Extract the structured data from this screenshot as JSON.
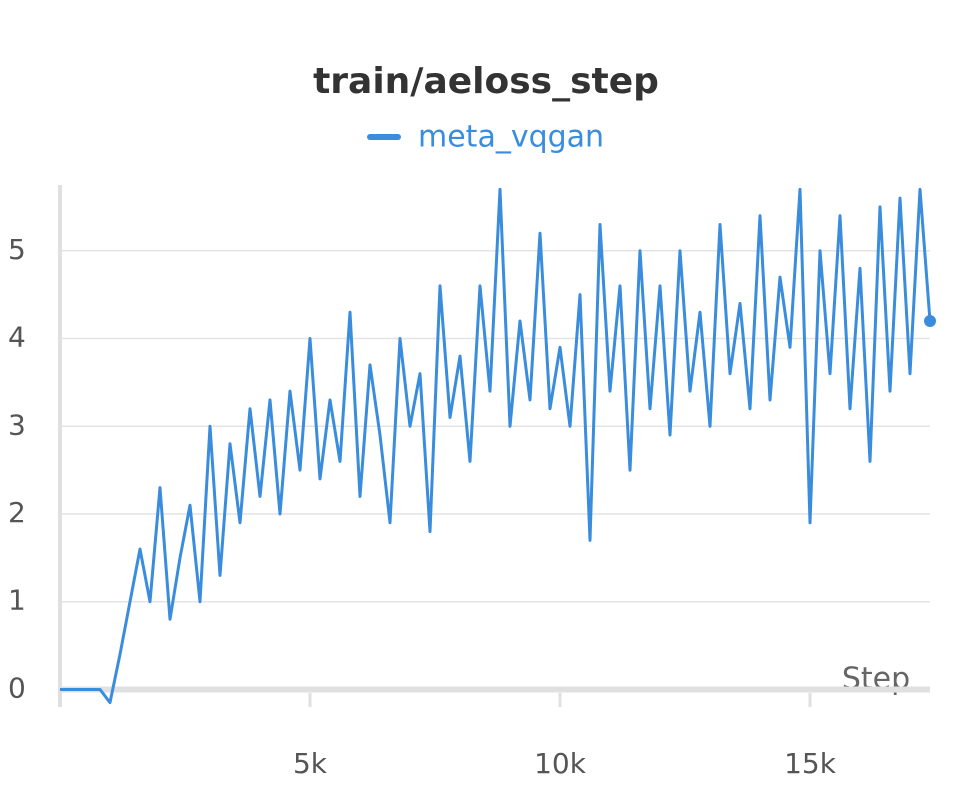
{
  "chart_data": {
    "type": "line",
    "title": "train/aeloss_step",
    "xlabel": "Step",
    "x": [
      0,
      200,
      400,
      600,
      800,
      1000,
      1200,
      1400,
      1600,
      1800,
      2000,
      2200,
      2400,
      2600,
      2800,
      3000,
      3200,
      3400,
      3600,
      3800,
      4000,
      4200,
      4400,
      4600,
      4800,
      5000,
      5200,
      5400,
      5600,
      5800,
      6000,
      6200,
      6400,
      6600,
      6800,
      7000,
      7200,
      7400,
      7600,
      7800,
      8000,
      8200,
      8400,
      8600,
      8800,
      9000,
      9200,
      9400,
      9600,
      9800,
      10000,
      10200,
      10400,
      10600,
      10800,
      11000,
      11200,
      11400,
      11600,
      11800,
      12000,
      12200,
      12400,
      12600,
      12800,
      13000,
      13200,
      13400,
      13600,
      13800,
      14000,
      14200,
      14400,
      14600,
      14800,
      15000,
      15200,
      15400,
      15600,
      15800,
      16000,
      16200,
      16400,
      16600,
      16800,
      17000,
      17200,
      17400
    ],
    "series": [
      {
        "name": "meta_vqgan",
        "color": "#3a8ddd",
        "values": [
          0,
          0,
          0,
          0,
          0,
          -0.15,
          0.4,
          1.0,
          1.6,
          1.0,
          2.3,
          0.8,
          1.5,
          2.1,
          1.0,
          3.0,
          1.3,
          2.8,
          1.9,
          3.2,
          2.2,
          3.3,
          2.0,
          3.4,
          2.5,
          4.0,
          2.4,
          3.3,
          2.6,
          4.3,
          2.2,
          3.7,
          2.9,
          1.9,
          4.0,
          3.0,
          3.6,
          1.8,
          4.6,
          3.1,
          3.8,
          2.6,
          4.6,
          3.4,
          5.7,
          3.0,
          4.2,
          3.3,
          5.2,
          3.2,
          3.9,
          3.0,
          4.5,
          1.7,
          5.3,
          3.4,
          4.6,
          2.5,
          5.0,
          3.2,
          4.6,
          2.9,
          5.0,
          3.4,
          4.3,
          3.0,
          5.3,
          3.6,
          4.4,
          3.2,
          5.4,
          3.3,
          4.7,
          3.9,
          5.7,
          1.9,
          5.0,
          3.6,
          5.4,
          3.2,
          4.8,
          2.6,
          5.5,
          3.4,
          5.6,
          3.6,
          5.7,
          4.2
        ]
      }
    ],
    "xlim": [
      0,
      17400
    ],
    "ylim": [
      -0.2,
      5.75
    ],
    "xticks": [
      {
        "value": 5000,
        "label": "5k"
      },
      {
        "value": 10000,
        "label": "10k"
      },
      {
        "value": 15000,
        "label": "15k"
      }
    ],
    "yticks": [
      0,
      1,
      2,
      3,
      4,
      5
    ],
    "grid": true
  }
}
